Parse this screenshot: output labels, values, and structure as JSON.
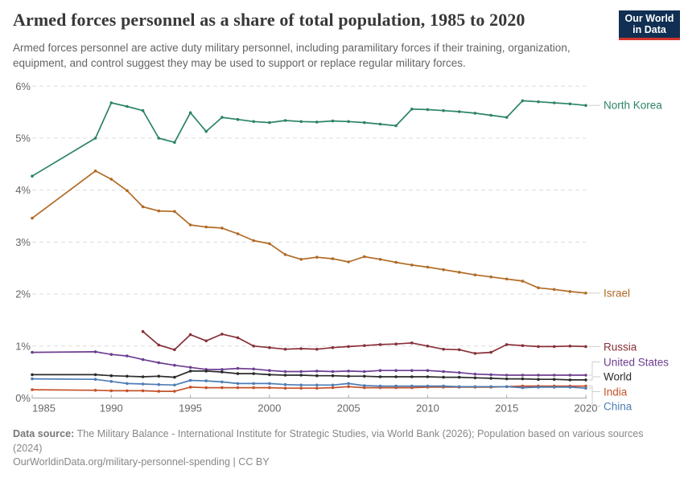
{
  "header": {
    "title": "Armed forces personnel as a share of total population, 1985 to 2020",
    "subtitle": "Armed forces personnel are active duty military personnel, including paramilitary forces if their training, organization, equipment, and control suggest they may be used to support or replace regular military forces.",
    "logo": {
      "line1": "Our World",
      "line2": "in Data",
      "bg_color": "#102f52",
      "bar_color": "#d2342e"
    }
  },
  "footer": {
    "source_label": "Data source:",
    "source_text": " The Military Balance - International Institute for Strategic Studies, via World Bank (2026); Population based on various sources (2024)",
    "link_text": "OurWorldinData.org/military-personnel-spending | CC BY"
  },
  "chart_data": {
    "type": "line",
    "title": "Armed forces personnel as a share of total population, 1985 to 2020",
    "xlabel": "",
    "ylabel": "",
    "xlim": [
      1985,
      2020
    ],
    "ylim": [
      0,
      6
    ],
    "x_ticks": [
      1985,
      1990,
      1995,
      2000,
      2005,
      2010,
      2015,
      2020
    ],
    "y_ticks": [
      0,
      1,
      2,
      3,
      4,
      5,
      6
    ],
    "y_tick_suffix": "%",
    "grid": "horizontal-dashed",
    "legend_position": "right-of-line-ends",
    "connector_color": "#cfcfcf",
    "series": [
      {
        "name": "North Korea",
        "color": "#2c8465",
        "points": [
          [
            1985,
            4.27
          ],
          [
            1989,
            5.0
          ],
          [
            1990,
            5.68
          ],
          [
            1991,
            5.61
          ],
          [
            1992,
            5.53
          ],
          [
            1993,
            5.0
          ],
          [
            1994,
            4.92
          ],
          [
            1995,
            5.49
          ],
          [
            1996,
            5.13
          ],
          [
            1997,
            5.4
          ],
          [
            1998,
            5.36
          ],
          [
            1999,
            5.32
          ],
          [
            2000,
            5.3
          ],
          [
            2001,
            5.34
          ],
          [
            2002,
            5.32
          ],
          [
            2003,
            5.31
          ],
          [
            2004,
            5.33
          ],
          [
            2005,
            5.32
          ],
          [
            2006,
            5.3
          ],
          [
            2007,
            5.27
          ],
          [
            2008,
            5.24
          ],
          [
            2009,
            5.56
          ],
          [
            2010,
            5.55
          ],
          [
            2011,
            5.53
          ],
          [
            2012,
            5.51
          ],
          [
            2013,
            5.48
          ],
          [
            2014,
            5.44
          ],
          [
            2015,
            5.4
          ],
          [
            2016,
            5.72
          ],
          [
            2017,
            5.7
          ],
          [
            2018,
            5.68
          ],
          [
            2019,
            5.66
          ],
          [
            2020,
            5.63
          ]
        ]
      },
      {
        "name": "Israel",
        "color": "#b16a24",
        "points": [
          [
            1985,
            3.46
          ],
          [
            1989,
            4.37
          ],
          [
            1990,
            4.21
          ],
          [
            1991,
            3.99
          ],
          [
            1992,
            3.68
          ],
          [
            1993,
            3.6
          ],
          [
            1994,
            3.59
          ],
          [
            1995,
            3.33
          ],
          [
            1996,
            3.29
          ],
          [
            1997,
            3.27
          ],
          [
            1998,
            3.16
          ],
          [
            1999,
            3.03
          ],
          [
            2000,
            2.97
          ],
          [
            2001,
            2.76
          ],
          [
            2002,
            2.67
          ],
          [
            2003,
            2.71
          ],
          [
            2004,
            2.68
          ],
          [
            2005,
            2.62
          ],
          [
            2006,
            2.72
          ],
          [
            2007,
            2.67
          ],
          [
            2008,
            2.61
          ],
          [
            2009,
            2.56
          ],
          [
            2010,
            2.52
          ],
          [
            2011,
            2.47
          ],
          [
            2012,
            2.42
          ],
          [
            2013,
            2.37
          ],
          [
            2014,
            2.33
          ],
          [
            2015,
            2.29
          ],
          [
            2016,
            2.25
          ],
          [
            2017,
            2.12
          ],
          [
            2018,
            2.09
          ],
          [
            2019,
            2.05
          ],
          [
            2020,
            2.02
          ]
        ]
      },
      {
        "name": "Russia",
        "color": "#883039",
        "points": [
          [
            1992,
            1.28
          ],
          [
            1993,
            1.02
          ],
          [
            1994,
            0.93
          ],
          [
            1995,
            1.22
          ],
          [
            1996,
            1.1
          ],
          [
            1997,
            1.23
          ],
          [
            1998,
            1.16
          ],
          [
            1999,
            1.0
          ],
          [
            2000,
            0.97
          ],
          [
            2001,
            0.94
          ],
          [
            2002,
            0.95
          ],
          [
            2003,
            0.94
          ],
          [
            2004,
            0.97
          ],
          [
            2005,
            0.99
          ],
          [
            2006,
            1.01
          ],
          [
            2007,
            1.03
          ],
          [
            2008,
            1.04
          ],
          [
            2009,
            1.06
          ],
          [
            2010,
            1.0
          ],
          [
            2011,
            0.94
          ],
          [
            2012,
            0.93
          ],
          [
            2013,
            0.86
          ],
          [
            2014,
            0.88
          ],
          [
            2015,
            1.03
          ],
          [
            2016,
            1.01
          ],
          [
            2017,
            0.99
          ],
          [
            2018,
            0.99
          ],
          [
            2019,
            1.0
          ],
          [
            2020,
            0.99
          ]
        ]
      },
      {
        "name": "United States",
        "color": "#6d3e91",
        "points": [
          [
            1985,
            0.88
          ],
          [
            1989,
            0.89
          ],
          [
            1990,
            0.84
          ],
          [
            1991,
            0.81
          ],
          [
            1992,
            0.74
          ],
          [
            1993,
            0.68
          ],
          [
            1994,
            0.63
          ],
          [
            1995,
            0.59
          ],
          [
            1996,
            0.55
          ],
          [
            1997,
            0.55
          ],
          [
            1998,
            0.57
          ],
          [
            1999,
            0.56
          ],
          [
            2000,
            0.53
          ],
          [
            2001,
            0.51
          ],
          [
            2002,
            0.51
          ],
          [
            2003,
            0.52
          ],
          [
            2004,
            0.51
          ],
          [
            2005,
            0.52
          ],
          [
            2006,
            0.51
          ],
          [
            2007,
            0.53
          ],
          [
            2008,
            0.53
          ],
          [
            2009,
            0.53
          ],
          [
            2010,
            0.53
          ],
          [
            2011,
            0.51
          ],
          [
            2012,
            0.49
          ],
          [
            2013,
            0.46
          ],
          [
            2014,
            0.45
          ],
          [
            2015,
            0.44
          ],
          [
            2016,
            0.44
          ],
          [
            2017,
            0.44
          ],
          [
            2018,
            0.44
          ],
          [
            2019,
            0.44
          ],
          [
            2020,
            0.44
          ]
        ]
      },
      {
        "name": "World",
        "color": "#2b2b2b",
        "points": [
          [
            1985,
            0.45
          ],
          [
            1989,
            0.45
          ],
          [
            1990,
            0.43
          ],
          [
            1991,
            0.42
          ],
          [
            1992,
            0.41
          ],
          [
            1993,
            0.42
          ],
          [
            1994,
            0.4
          ],
          [
            1995,
            0.52
          ],
          [
            1996,
            0.52
          ],
          [
            1997,
            0.5
          ],
          [
            1998,
            0.47
          ],
          [
            1999,
            0.47
          ],
          [
            2000,
            0.45
          ],
          [
            2001,
            0.44
          ],
          [
            2002,
            0.44
          ],
          [
            2003,
            0.43
          ],
          [
            2004,
            0.43
          ],
          [
            2005,
            0.42
          ],
          [
            2006,
            0.42
          ],
          [
            2007,
            0.41
          ],
          [
            2008,
            0.41
          ],
          [
            2009,
            0.41
          ],
          [
            2010,
            0.41
          ],
          [
            2011,
            0.4
          ],
          [
            2012,
            0.4
          ],
          [
            2013,
            0.39
          ],
          [
            2014,
            0.38
          ],
          [
            2015,
            0.37
          ],
          [
            2016,
            0.37
          ],
          [
            2017,
            0.36
          ],
          [
            2018,
            0.36
          ],
          [
            2019,
            0.35
          ],
          [
            2020,
            0.35
          ]
        ]
      },
      {
        "name": "India",
        "color": "#c4522b",
        "points": [
          [
            1985,
            0.16
          ],
          [
            1989,
            0.15
          ],
          [
            1990,
            0.14
          ],
          [
            1991,
            0.14
          ],
          [
            1992,
            0.14
          ],
          [
            1993,
            0.13
          ],
          [
            1994,
            0.13
          ],
          [
            1995,
            0.21
          ],
          [
            1996,
            0.2
          ],
          [
            1997,
            0.2
          ],
          [
            1998,
            0.2
          ],
          [
            1999,
            0.2
          ],
          [
            2000,
            0.2
          ],
          [
            2001,
            0.19
          ],
          [
            2002,
            0.19
          ],
          [
            2003,
            0.19
          ],
          [
            2004,
            0.2
          ],
          [
            2005,
            0.22
          ],
          [
            2006,
            0.2
          ],
          [
            2007,
            0.2
          ],
          [
            2008,
            0.2
          ],
          [
            2009,
            0.2
          ],
          [
            2010,
            0.21
          ],
          [
            2011,
            0.21
          ],
          [
            2012,
            0.21
          ],
          [
            2013,
            0.21
          ],
          [
            2014,
            0.21
          ],
          [
            2015,
            0.22
          ],
          [
            2016,
            0.23
          ],
          [
            2017,
            0.23
          ],
          [
            2018,
            0.23
          ],
          [
            2019,
            0.23
          ],
          [
            2020,
            0.23
          ]
        ]
      },
      {
        "name": "China",
        "color": "#4e7cb5",
        "points": [
          [
            1985,
            0.37
          ],
          [
            1989,
            0.36
          ],
          [
            1990,
            0.32
          ],
          [
            1991,
            0.28
          ],
          [
            1992,
            0.27
          ],
          [
            1993,
            0.26
          ],
          [
            1994,
            0.25
          ],
          [
            1995,
            0.34
          ],
          [
            1996,
            0.33
          ],
          [
            1997,
            0.31
          ],
          [
            1998,
            0.28
          ],
          [
            1999,
            0.28
          ],
          [
            2000,
            0.28
          ],
          [
            2001,
            0.26
          ],
          [
            2002,
            0.25
          ],
          [
            2003,
            0.25
          ],
          [
            2004,
            0.25
          ],
          [
            2005,
            0.28
          ],
          [
            2006,
            0.24
          ],
          [
            2007,
            0.23
          ],
          [
            2008,
            0.23
          ],
          [
            2009,
            0.23
          ],
          [
            2010,
            0.23
          ],
          [
            2011,
            0.23
          ],
          [
            2012,
            0.22
          ],
          [
            2013,
            0.22
          ],
          [
            2014,
            0.22
          ],
          [
            2015,
            0.22
          ],
          [
            2016,
            0.2
          ],
          [
            2017,
            0.21
          ],
          [
            2018,
            0.21
          ],
          [
            2019,
            0.21
          ],
          [
            2020,
            0.19
          ]
        ]
      }
    ]
  }
}
